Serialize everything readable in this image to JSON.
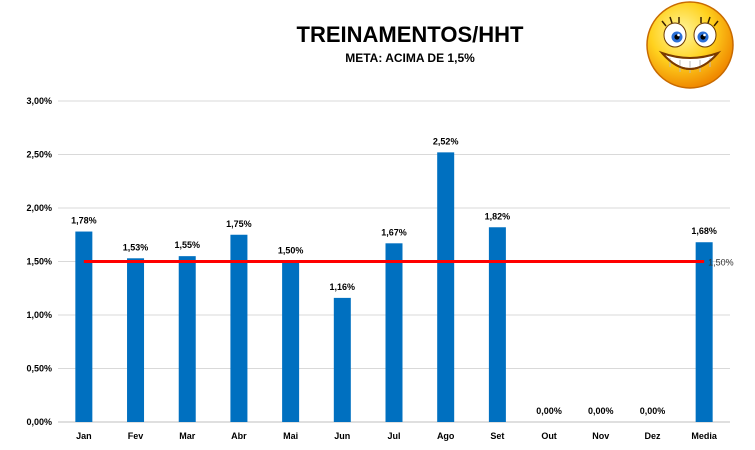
{
  "chart_data": {
    "type": "bar",
    "title": "TREINAMENTOS/HHT",
    "subtitle": "META: ACIMA DE 1,5%",
    "categories": [
      "Jan",
      "Fev",
      "Mar",
      "Abr",
      "Mai",
      "Jun",
      "Jul",
      "Ago",
      "Set",
      "Out",
      "Nov",
      "Dez",
      "Media"
    ],
    "values": [
      1.78,
      1.53,
      1.55,
      1.75,
      1.5,
      1.16,
      1.67,
      2.52,
      1.82,
      0.0,
      0.0,
      0.0,
      1.68
    ],
    "value_labels": [
      "1,78%",
      "1,53%",
      "1,55%",
      "1,75%",
      "1,50%",
      "1,16%",
      "1,67%",
      "2,52%",
      "1,82%",
      "0,00%",
      "0,00%",
      "0,00%",
      "1,68%"
    ],
    "ylim": [
      0,
      3.0
    ],
    "yticks": [
      0,
      0.5,
      1.0,
      1.5,
      2.0,
      2.5,
      3.0
    ],
    "ytick_labels": [
      "0,00%",
      "0,50%",
      "1,00%",
      "1,50%",
      "2,00%",
      "2,50%",
      "3,00%"
    ],
    "target": {
      "value": 1.5,
      "label": "1,50%"
    },
    "grid": true,
    "colors": {
      "bar": "#0070c0",
      "target": "#ff0000",
      "grid": "#d9d9d9"
    }
  },
  "decoration": {
    "emoji": "smiling-face-icon"
  }
}
